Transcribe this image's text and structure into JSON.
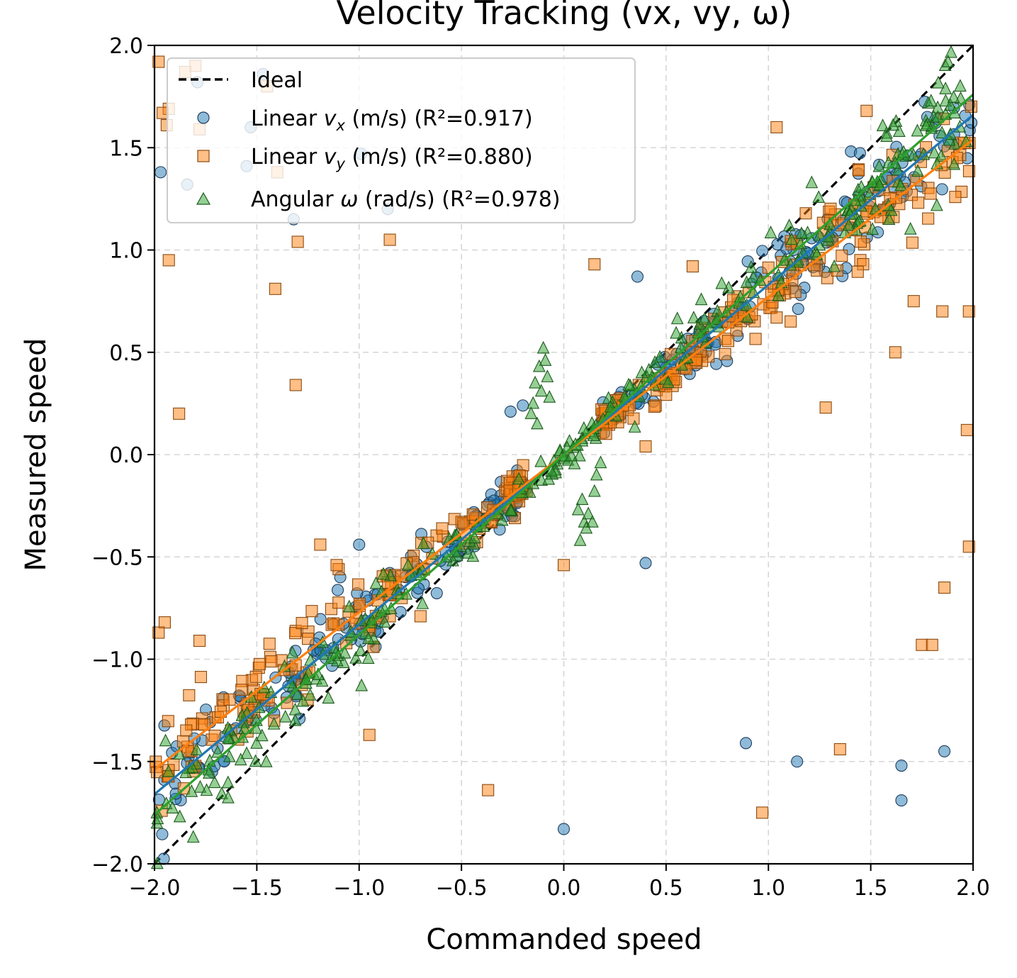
{
  "chart_data": {
    "type": "scatter",
    "title": "Velocity Tracking (vx, vy, ω)",
    "xlabel": "Commanded speed",
    "ylabel": "Measured speed",
    "xlim": [
      -2.0,
      2.0
    ],
    "ylim": [
      -2.0,
      2.0
    ],
    "xticks": [
      -2.0,
      -1.5,
      -1.0,
      -0.5,
      0.0,
      0.5,
      1.0,
      1.5,
      2.0
    ],
    "yticks": [
      -2.0,
      -1.5,
      -1.0,
      -0.5,
      0.0,
      0.5,
      1.0,
      1.5,
      2.0
    ],
    "xtick_labels": [
      "−2.0",
      "−1.5",
      "−1.0",
      "−0.5",
      "0.0",
      "0.5",
      "1.0",
      "1.5",
      "2.0"
    ],
    "ytick_labels": [
      "−2.0",
      "−1.5",
      "−1.0",
      "−0.5",
      "0.0",
      "0.5",
      "1.0",
      "1.5",
      "2.0"
    ],
    "grid": true,
    "legend_position": "top-left",
    "ideal": {
      "name": "Ideal",
      "slope": 1.0,
      "intercept": 0.0,
      "color": "#000000",
      "style": "dashed"
    },
    "series": [
      {
        "name": "Linear vx (m/s) (R²=0.917)",
        "label_prefix": "Linear ",
        "label_symbol": "v",
        "label_sub": "x",
        "label_suffix": " (m/s) (R²=0.917)",
        "marker": "circle",
        "color": "#1f77b4",
        "fit_slope": 0.83,
        "fit_intercept": 0.0,
        "r2": 0.917,
        "outliers": [
          [
            -1.97,
            1.38
          ],
          [
            -1.84,
            1.32
          ],
          [
            -1.53,
            1.6
          ],
          [
            -1.55,
            1.41
          ],
          [
            -1.32,
            1.15
          ],
          [
            -0.99,
            1.47
          ],
          [
            -0.86,
            1.2
          ],
          [
            -1.79,
            1.82
          ],
          [
            -1.47,
            1.86
          ],
          [
            0.89,
            -1.41
          ],
          [
            1.14,
            -1.5
          ],
          [
            1.65,
            -1.52
          ],
          [
            1.65,
            -1.69
          ],
          [
            1.86,
            -1.45
          ],
          [
            0.0,
            -1.83
          ],
          [
            0.4,
            -0.53
          ],
          [
            -1.0,
            -0.44
          ],
          [
            0.36,
            0.87
          ],
          [
            -0.2,
            0.24
          ],
          [
            -0.26,
            0.21
          ]
        ]
      },
      {
        "name": "Linear vy (m/s) (R²=0.880)",
        "label_prefix": "Linear ",
        "label_symbol": "v",
        "label_sub": "y",
        "label_suffix": " (m/s) (R²=0.880)",
        "marker": "square",
        "color": "#ff7f0e",
        "fit_slope": 0.77,
        "fit_intercept": 0.0,
        "r2": 0.88,
        "outliers": [
          [
            -1.98,
            1.92
          ],
          [
            -1.93,
            1.69
          ],
          [
            -1.96,
            1.67
          ],
          [
            -1.94,
            1.61
          ],
          [
            -1.8,
            1.9
          ],
          [
            -1.85,
            1.87
          ],
          [
            -1.78,
            1.59
          ],
          [
            -1.45,
            1.8
          ],
          [
            -1.4,
            1.38
          ],
          [
            -1.3,
            1.04
          ],
          [
            -0.85,
            1.05
          ],
          [
            -1.93,
            0.95
          ],
          [
            -1.41,
            0.81
          ],
          [
            -1.31,
            0.34
          ],
          [
            -1.88,
            0.2
          ],
          [
            -0.95,
            -1.37
          ],
          [
            -0.37,
            -1.64
          ],
          [
            0.0,
            -0.54
          ],
          [
            0.97,
            -1.75
          ],
          [
            1.35,
            -1.44
          ],
          [
            1.28,
            0.23
          ],
          [
            1.62,
            0.5
          ],
          [
            1.97,
            0.12
          ],
          [
            1.98,
            -0.45
          ],
          [
            1.86,
            -0.65
          ],
          [
            1.75,
            -0.93
          ],
          [
            1.8,
            -0.93
          ],
          [
            1.04,
            1.6
          ],
          [
            1.48,
            1.68
          ],
          [
            1.71,
            0.75
          ],
          [
            1.85,
            0.7
          ],
          [
            1.98,
            0.7
          ],
          [
            -0.93,
            -0.94
          ],
          [
            -1.95,
            -0.82
          ],
          [
            -1.98,
            -0.87
          ],
          [
            -1.78,
            -0.91
          ],
          [
            -1.1,
            -0.56
          ],
          [
            -0.85,
            -0.79
          ],
          [
            -0.7,
            -0.79
          ],
          [
            -1.19,
            -0.44
          ],
          [
            -1.31,
            -1.03
          ],
          [
            -1.25,
            -0.9
          ],
          [
            0.15,
            0.93
          ],
          [
            0.4,
            0.04
          ],
          [
            0.63,
            0.92
          ],
          [
            -1.11,
            -0.54
          ]
        ]
      },
      {
        "name": "Angular ω (rad/s) (R²=0.978)",
        "label_prefix": "Angular ",
        "label_symbol": "ω",
        "label_sub": "",
        "label_suffix": " (rad/s) (R²=0.978)",
        "marker": "triangle",
        "color": "#2ca02c",
        "fit_slope": 0.88,
        "fit_intercept": 0.0,
        "r2": 0.978,
        "outliers": [
          [
            -0.1,
            0.52
          ],
          [
            -0.09,
            0.46
          ],
          [
            -0.12,
            0.43
          ],
          [
            -0.08,
            0.38
          ],
          [
            -0.14,
            0.35
          ],
          [
            -0.11,
            0.31
          ],
          [
            -0.15,
            0.25
          ],
          [
            -0.07,
            0.28
          ],
          [
            0.08,
            -0.42
          ],
          [
            0.1,
            -0.33
          ],
          [
            0.12,
            -0.29
          ],
          [
            0.07,
            -0.27
          ],
          [
            0.15,
            -0.18
          ],
          [
            0.09,
            -0.22
          ],
          [
            0.11,
            -0.36
          ],
          [
            0.14,
            -0.33
          ],
          [
            -0.16,
            0.2
          ],
          [
            -0.13,
            0.15
          ],
          [
            0.16,
            -0.1
          ],
          [
            0.18,
            -0.04
          ]
        ]
      }
    ]
  }
}
